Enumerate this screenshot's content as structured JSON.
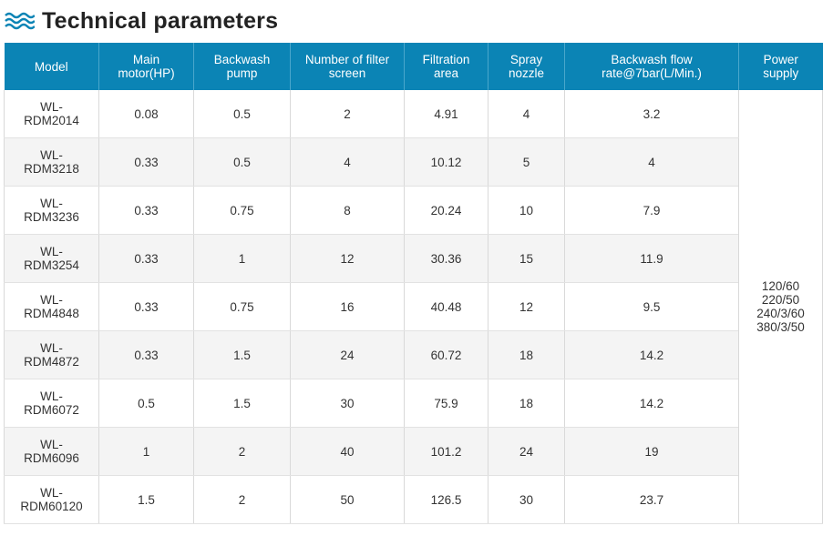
{
  "heading": {
    "icon": "wave-icon",
    "title": "Technical parameters",
    "accent_color": "#0b84b5"
  },
  "table": {
    "columns": [
      {
        "line1": "Model",
        "line2": ""
      },
      {
        "line1": "Main",
        "line2": "motor(HP)"
      },
      {
        "line1": "Backwash",
        "line2": "pump"
      },
      {
        "line1": "Number of filter",
        "line2": "screen"
      },
      {
        "line1": "Filtration",
        "line2": "area"
      },
      {
        "line1": "Spray",
        "line2": "nozzle"
      },
      {
        "line1": "Backwash flow",
        "line2": "rate@7bar(L/Min.)"
      },
      {
        "line1": "Power",
        "line2": "supply"
      }
    ],
    "rows": [
      {
        "model_a": "WL-",
        "model_b": "RDM2014",
        "motor": "0.08",
        "pump": "0.5",
        "screens": "2",
        "area": "4.91",
        "nozzle": "4",
        "flow": "3.2"
      },
      {
        "model_a": "WL-",
        "model_b": "RDM3218",
        "motor": "0.33",
        "pump": "0.5",
        "screens": "4",
        "area": "10.12",
        "nozzle": "5",
        "flow": "4"
      },
      {
        "model_a": "WL-",
        "model_b": "RDM3236",
        "motor": "0.33",
        "pump": "0.75",
        "screens": "8",
        "area": "20.24",
        "nozzle": "10",
        "flow": "7.9"
      },
      {
        "model_a": "WL-",
        "model_b": "RDM3254",
        "motor": "0.33",
        "pump": "1",
        "screens": "12",
        "area": "30.36",
        "nozzle": "15",
        "flow": "11.9"
      },
      {
        "model_a": "WL-",
        "model_b": "RDM4848",
        "motor": "0.33",
        "pump": "0.75",
        "screens": "16",
        "area": "40.48",
        "nozzle": "12",
        "flow": "9.5"
      },
      {
        "model_a": "WL-",
        "model_b": "RDM4872",
        "motor": "0.33",
        "pump": "1.5",
        "screens": "24",
        "area": "60.72",
        "nozzle": "18",
        "flow": "14.2"
      },
      {
        "model_a": "WL-",
        "model_b": "RDM6072",
        "motor": "0.5",
        "pump": "1.5",
        "screens": "30",
        "area": "75.9",
        "nozzle": "18",
        "flow": "14.2"
      },
      {
        "model_a": "WL-",
        "model_b": "RDM6096",
        "motor": "1",
        "pump": "2",
        "screens": "40",
        "area": "101.2",
        "nozzle": "24",
        "flow": "19"
      },
      {
        "model_a": "WL-",
        "model_b": "RDM60120",
        "motor": "1.5",
        "pump": "2",
        "screens": "50",
        "area": "126.5",
        "nozzle": "30",
        "flow": "23.7"
      }
    ],
    "power_supply": [
      "120/60",
      "220/50",
      "240/3/60",
      "380/3/50"
    ]
  }
}
